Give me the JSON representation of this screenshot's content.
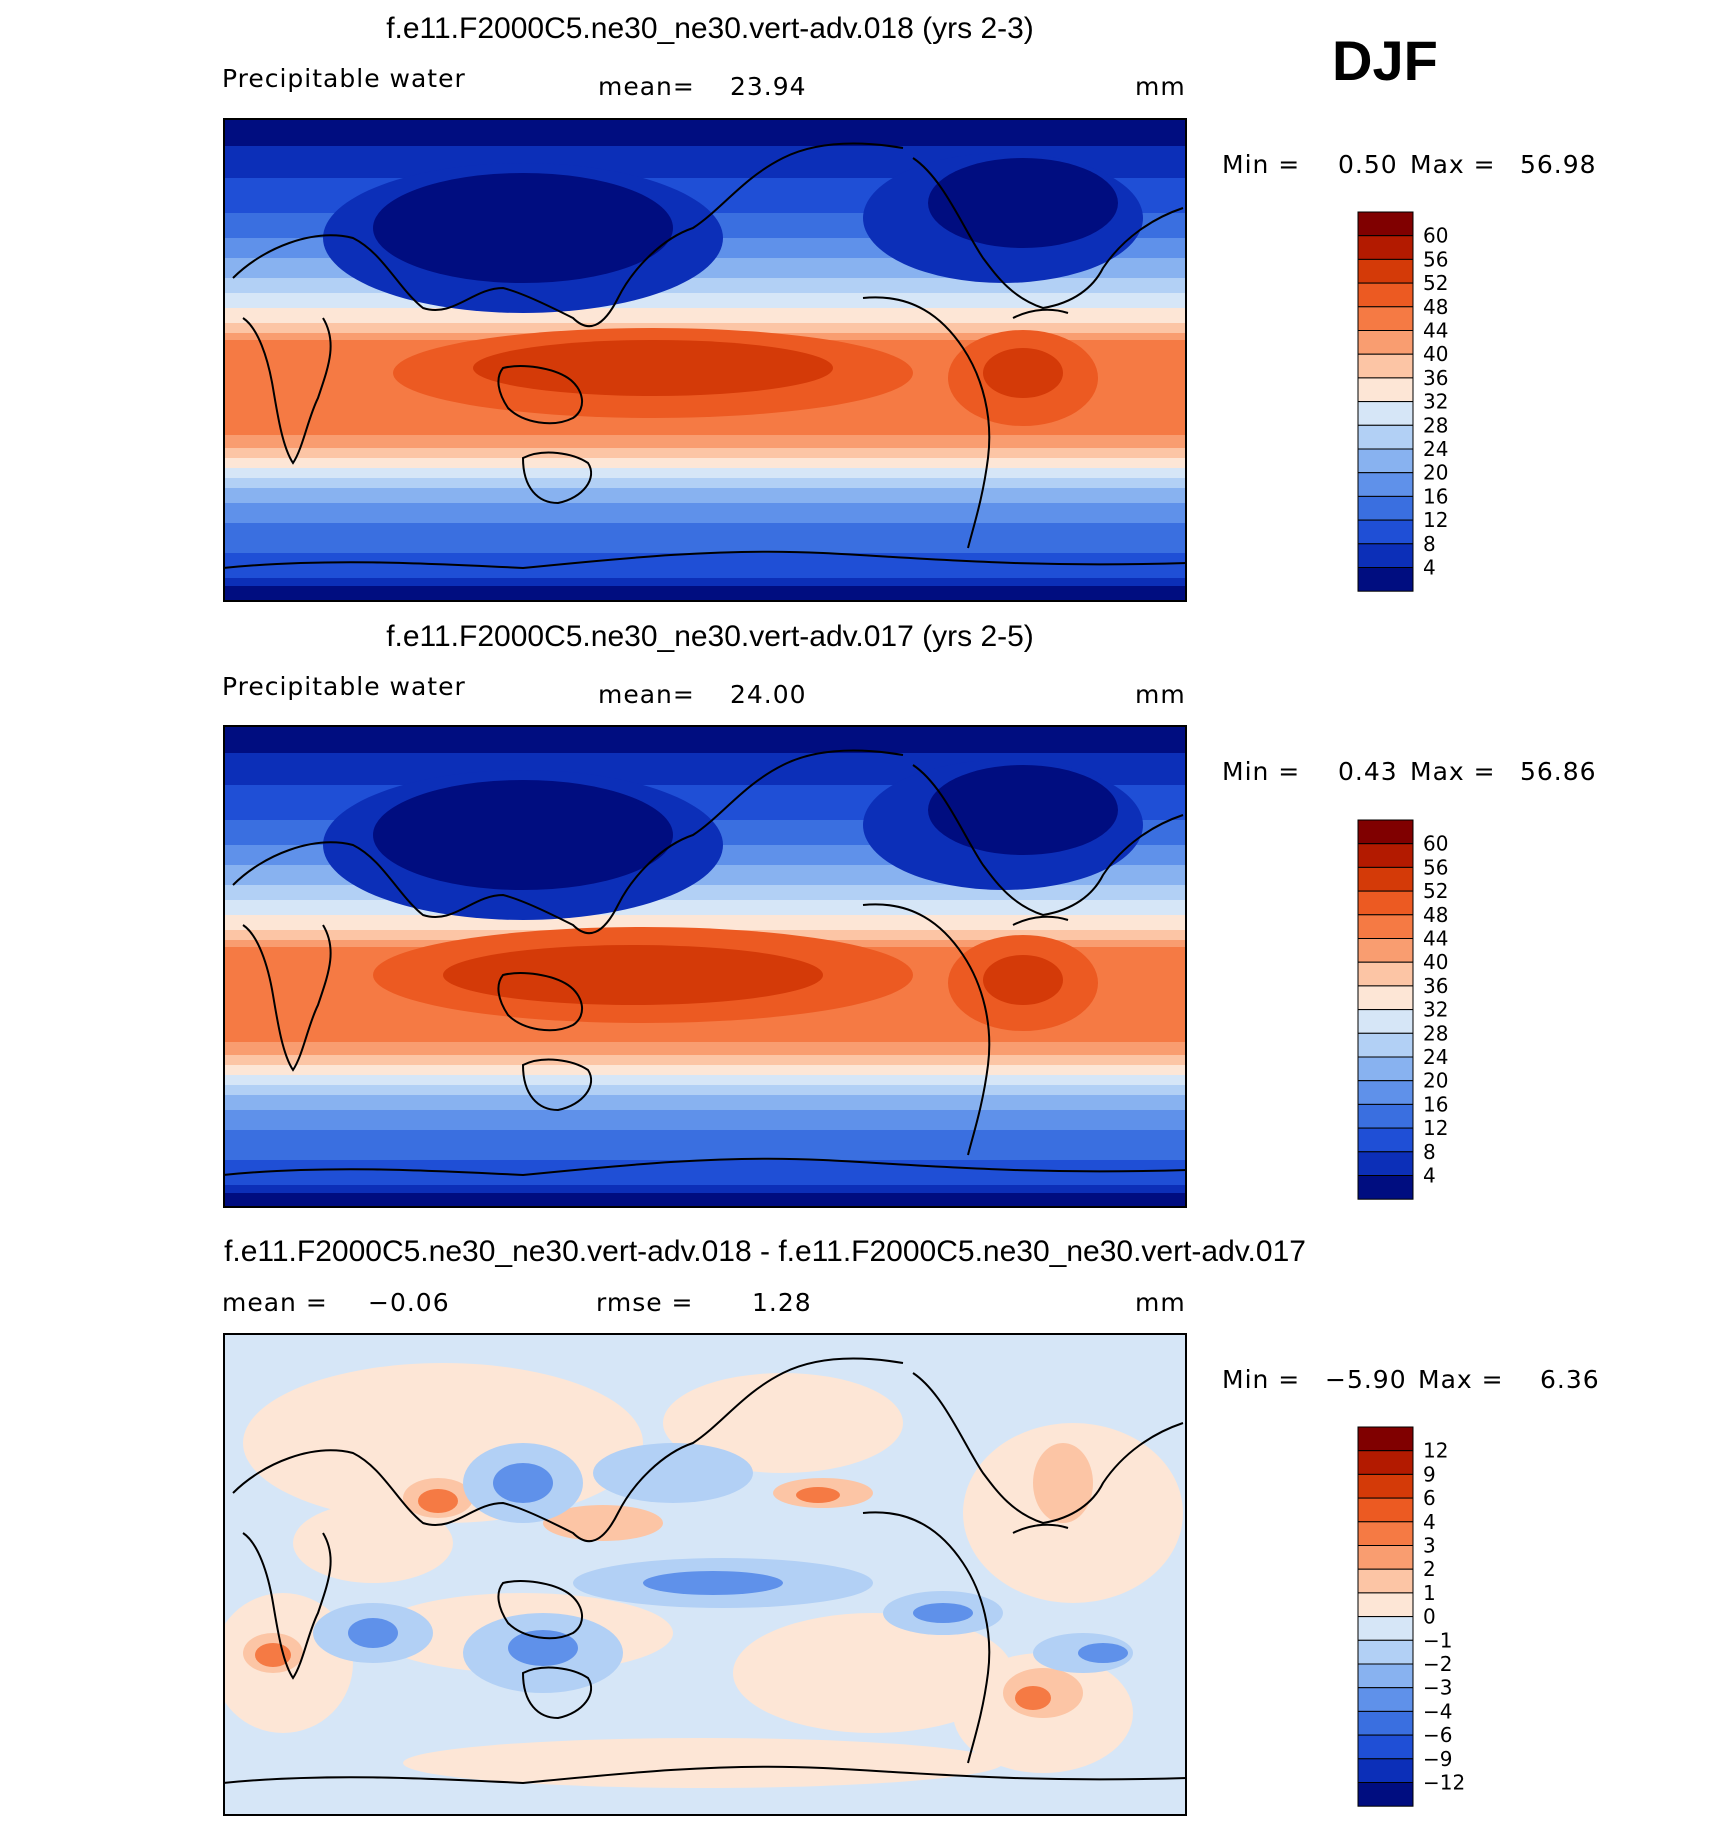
{
  "season": "DJF",
  "chart_data": [
    {
      "type": "heatmap",
      "title": "f.e11.F2000C5.ne30_ne30.vert-adv.018 (yrs 2-3)",
      "variable": "Precipitable water",
      "stat_left_label": "mean=",
      "stat_left_value": "23.94",
      "units": "mm",
      "min_label": "Min =",
      "min_value": "0.50",
      "max_label": "Max =",
      "max_value": "56.98",
      "colorbar": {
        "levels": [
          "60",
          "56",
          "52",
          "48",
          "44",
          "40",
          "36",
          "32",
          "28",
          "24",
          "20",
          "16",
          "12",
          "8",
          "4"
        ],
        "colors": [
          "#800000",
          "#b31a00",
          "#d43a08",
          "#ec5a22",
          "#f57a44",
          "#f99d70",
          "#fcc5a5",
          "#fde6d6",
          "#d6e6f7",
          "#b2d0f5",
          "#88b2f0",
          "#5f91ea",
          "#3a6fe0",
          "#1f4fd6",
          "#0c2fb8",
          "#000d80"
        ]
      }
    },
    {
      "type": "heatmap",
      "title": "f.e11.F2000C5.ne30_ne30.vert-adv.017 (yrs 2-5)",
      "variable": "Precipitable water",
      "stat_left_label": "mean=",
      "stat_left_value": "24.00",
      "units": "mm",
      "min_label": "Min =",
      "min_value": "0.43",
      "max_label": "Max =",
      "max_value": "56.86",
      "colorbar": {
        "levels": [
          "60",
          "56",
          "52",
          "48",
          "44",
          "40",
          "36",
          "32",
          "28",
          "24",
          "20",
          "16",
          "12",
          "8",
          "4"
        ],
        "colors": [
          "#800000",
          "#b31a00",
          "#d43a08",
          "#ec5a22",
          "#f57a44",
          "#f99d70",
          "#fcc5a5",
          "#fde6d6",
          "#d6e6f7",
          "#b2d0f5",
          "#88b2f0",
          "#5f91ea",
          "#3a6fe0",
          "#1f4fd6",
          "#0c2fb8",
          "#000d80"
        ]
      }
    },
    {
      "type": "heatmap",
      "title": "f.e11.F2000C5.ne30_ne30.vert-adv.018 - f.e11.F2000C5.ne30_ne30.vert-adv.017",
      "variable": "",
      "stat_left_label": "mean =",
      "stat_left_value": "−0.06",
      "stat_mid_label": "rmse =",
      "stat_mid_value": "1.28",
      "units": "mm",
      "min_label": "Min =",
      "min_value": "−5.90",
      "max_label": "Max =",
      "max_value": "6.36",
      "colorbar": {
        "levels": [
          "12",
          "9",
          "6",
          "4",
          "3",
          "2",
          "1",
          "0",
          "−1",
          "−2",
          "−3",
          "−4",
          "−6",
          "−9",
          "−12"
        ],
        "colors": [
          "#800000",
          "#b31a00",
          "#d43a08",
          "#ec5a22",
          "#f57a44",
          "#f99d70",
          "#fcc5a5",
          "#fde6d6",
          "#d6e6f7",
          "#b2d0f5",
          "#88b2f0",
          "#5f91ea",
          "#3a6fe0",
          "#1f4fd6",
          "#0c2fb8",
          "#000d80"
        ]
      }
    }
  ]
}
